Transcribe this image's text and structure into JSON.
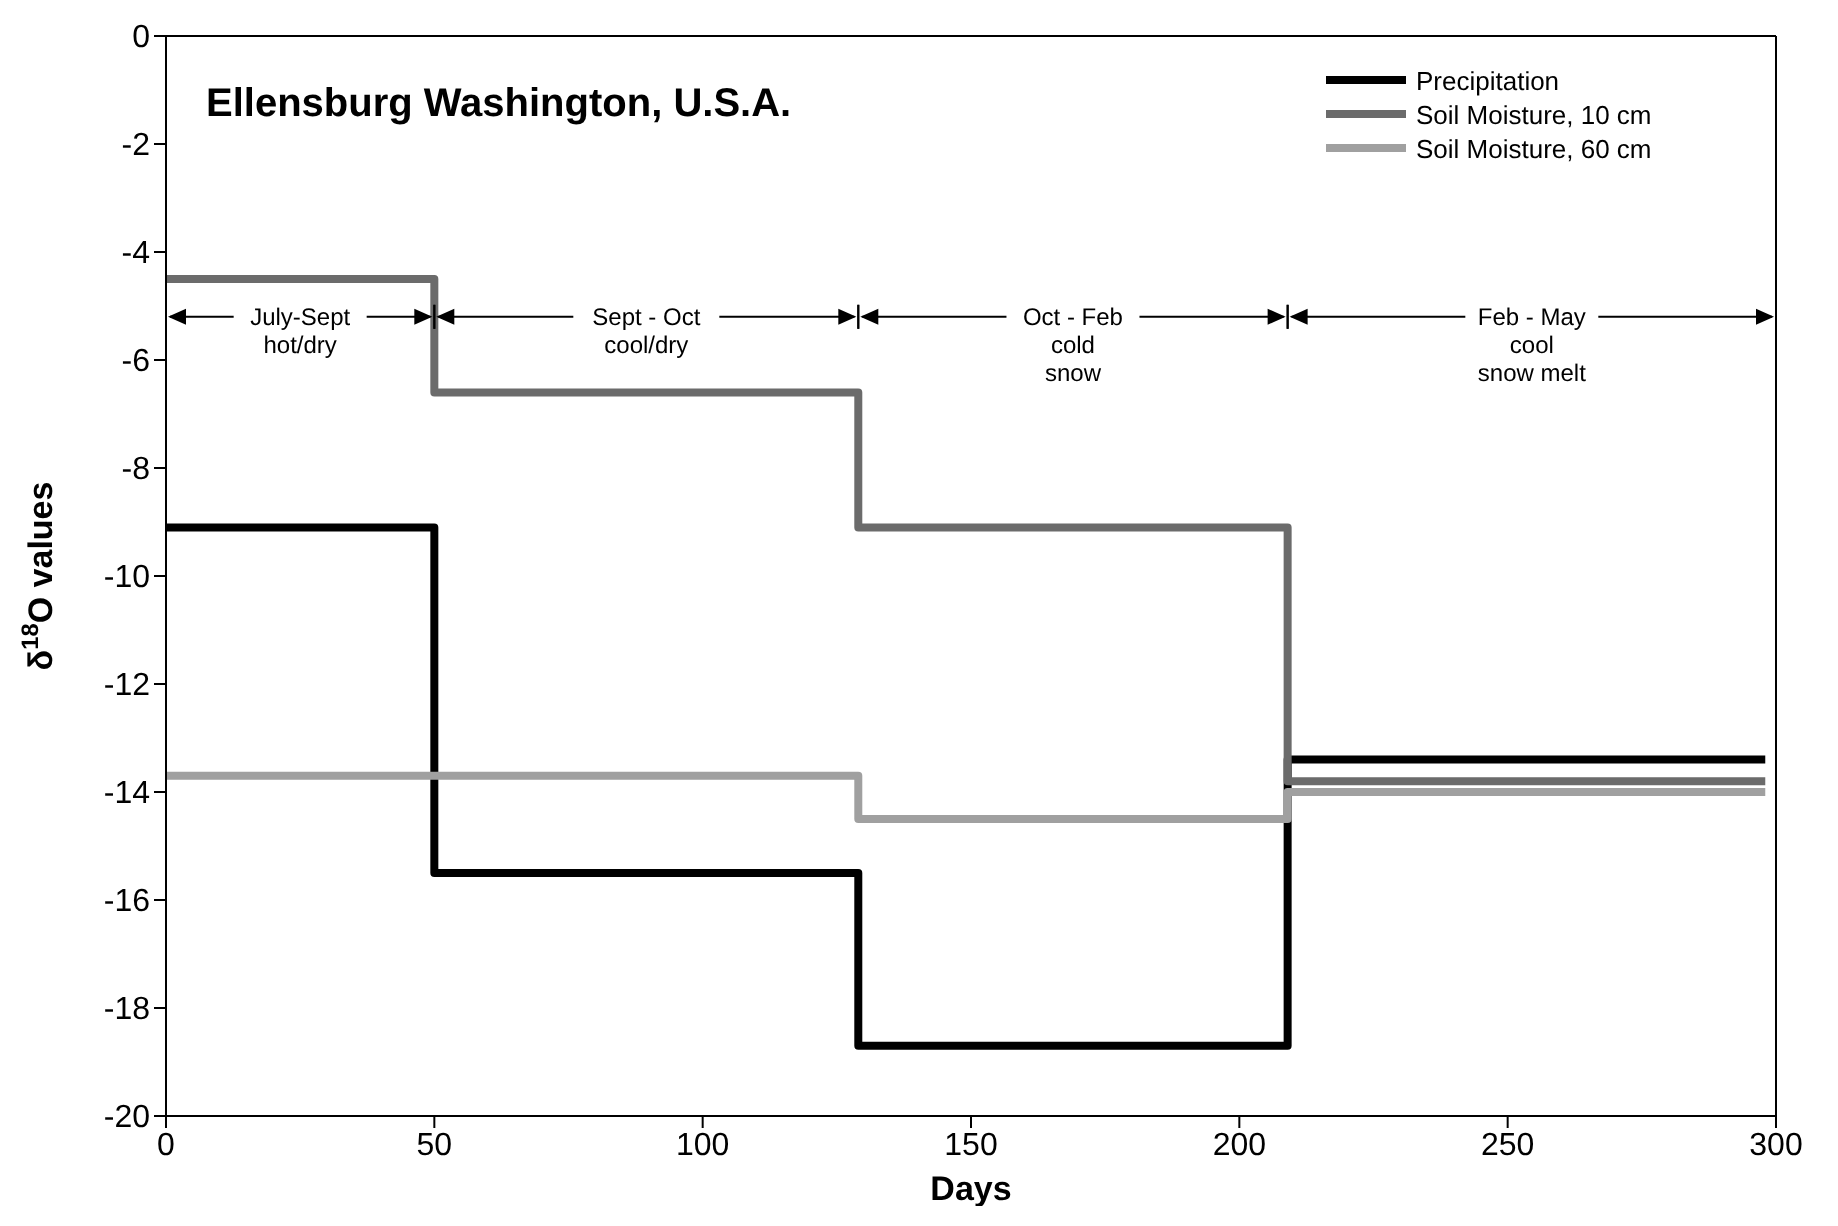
{
  "chart_data": {
    "type": "step",
    "title": "Ellensburg Washington, U.S.A.",
    "xlabel": "Days",
    "ylabel": "δ$^{18}$O values",
    "x": [
      0,
      50,
      129,
      209,
      298
    ],
    "series": [
      {
        "name": "Precipitation",
        "color": "#000000",
        "values": [
          -9.1,
          -15.5,
          -18.7,
          -13.4,
          -13.4
        ]
      },
      {
        "name": "Soil Moisture, 10 cm",
        "color": "#6b6b6b",
        "values": [
          -4.5,
          -6.6,
          -9.1,
          -13.8,
          -13.8
        ]
      },
      {
        "name": "Soil Moisture, 60 cm",
        "color": "#a0a0a0",
        "values": [
          -13.7,
          -13.7,
          -14.5,
          -14.0,
          -14.0
        ]
      }
    ],
    "annotations": [
      {
        "text": "July-Sept\nhot/dry",
        "x": 50,
        "y": -5.2
      },
      {
        "text": "Sept - Oct\ncool/dry",
        "x": 50,
        "y": -5.2
      },
      "Oct - Feb\ncold\nsnow",
      "Feb - May\ncool\nsnow melt"
    ],
    "xlim": [
      0,
      300
    ],
    "xticks": [
      0,
      50,
      100,
      150,
      200,
      250,
      300
    ],
    "ylim": [
      -20,
      0
    ],
    "yticks": [
      -20,
      -18,
      -16,
      -14,
      -12,
      -10,
      -8,
      -6,
      -4,
      -2,
      0
    ],
    "grid": false,
    "legend": "top right",
    "line_style": "solid",
    "marker": "none"
  }
}
